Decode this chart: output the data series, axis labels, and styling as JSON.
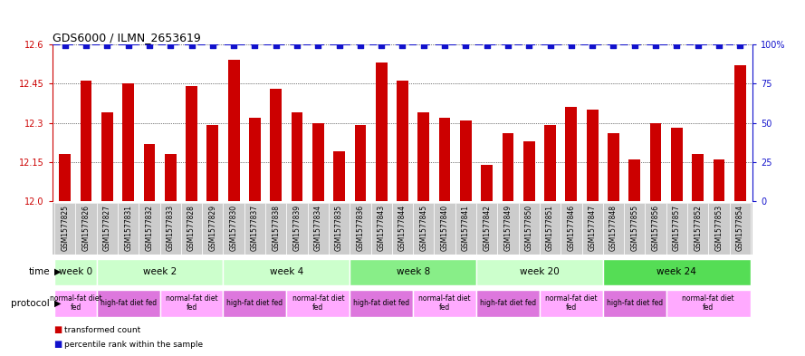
{
  "title": "GDS6000 / ILMN_2653619",
  "samples": [
    "GSM1577825",
    "GSM1577826",
    "GSM1577827",
    "GSM1577831",
    "GSM1577832",
    "GSM1577833",
    "GSM1577828",
    "GSM1577829",
    "GSM1577830",
    "GSM1577837",
    "GSM1577838",
    "GSM1577839",
    "GSM1577834",
    "GSM1577835",
    "GSM1577836",
    "GSM1577843",
    "GSM1577844",
    "GSM1577845",
    "GSM1577840",
    "GSM1577841",
    "GSM1577842",
    "GSM1577849",
    "GSM1577850",
    "GSM1577851",
    "GSM1577846",
    "GSM1577847",
    "GSM1577848",
    "GSM1577855",
    "GSM1577856",
    "GSM1577857",
    "GSM1577852",
    "GSM1577853",
    "GSM1577854"
  ],
  "bar_values": [
    12.18,
    12.46,
    12.34,
    12.45,
    12.22,
    12.18,
    12.44,
    12.29,
    12.54,
    12.32,
    12.43,
    12.34,
    12.3,
    12.19,
    12.29,
    12.53,
    12.46,
    12.34,
    12.32,
    12.31,
    12.14,
    12.26,
    12.23,
    12.29,
    12.36,
    12.35,
    12.26,
    12.16,
    12.3,
    12.28,
    12.18,
    12.16,
    12.52
  ],
  "ylim_left": [
    12.0,
    12.6
  ],
  "ylim_right": [
    0,
    100
  ],
  "yticks_left": [
    12.0,
    12.15,
    12.3,
    12.45,
    12.6
  ],
  "yticks_right": [
    0,
    25,
    50,
    75,
    100
  ],
  "bar_color": "#cc0000",
  "percentile_color": "#1111cc",
  "background_color": "#ffffff",
  "time_groups": [
    {
      "label": "week 0",
      "start": 0,
      "end": 2,
      "color": "#ccffcc"
    },
    {
      "label": "week 2",
      "start": 2,
      "end": 8,
      "color": "#ccffcc"
    },
    {
      "label": "week 4",
      "start": 8,
      "end": 14,
      "color": "#ccffcc"
    },
    {
      "label": "week 8",
      "start": 14,
      "end": 20,
      "color": "#88ee88"
    },
    {
      "label": "week 20",
      "start": 20,
      "end": 26,
      "color": "#ccffcc"
    },
    {
      "label": "week 24",
      "start": 26,
      "end": 33,
      "color": "#55dd55"
    }
  ],
  "protocol_groups": [
    {
      "label": "normal-fat diet\nfed",
      "start": 0,
      "end": 2,
      "color": "#ffaaff"
    },
    {
      "label": "high-fat diet fed",
      "start": 2,
      "end": 5,
      "color": "#dd77dd"
    },
    {
      "label": "normal-fat diet\nfed",
      "start": 5,
      "end": 8,
      "color": "#ffaaff"
    },
    {
      "label": "high-fat diet fed",
      "start": 8,
      "end": 11,
      "color": "#dd77dd"
    },
    {
      "label": "normal-fat diet\nfed",
      "start": 11,
      "end": 14,
      "color": "#ffaaff"
    },
    {
      "label": "high-fat diet fed",
      "start": 14,
      "end": 17,
      "color": "#dd77dd"
    },
    {
      "label": "normal-fat diet\nfed",
      "start": 17,
      "end": 20,
      "color": "#ffaaff"
    },
    {
      "label": "high-fat diet fed",
      "start": 20,
      "end": 23,
      "color": "#dd77dd"
    },
    {
      "label": "normal-fat diet\nfed",
      "start": 23,
      "end": 26,
      "color": "#ffaaff"
    },
    {
      "label": "high-fat diet fed",
      "start": 26,
      "end": 29,
      "color": "#dd77dd"
    },
    {
      "label": "normal-fat diet\nfed",
      "start": 29,
      "end": 33,
      "color": "#ffaaff"
    }
  ]
}
